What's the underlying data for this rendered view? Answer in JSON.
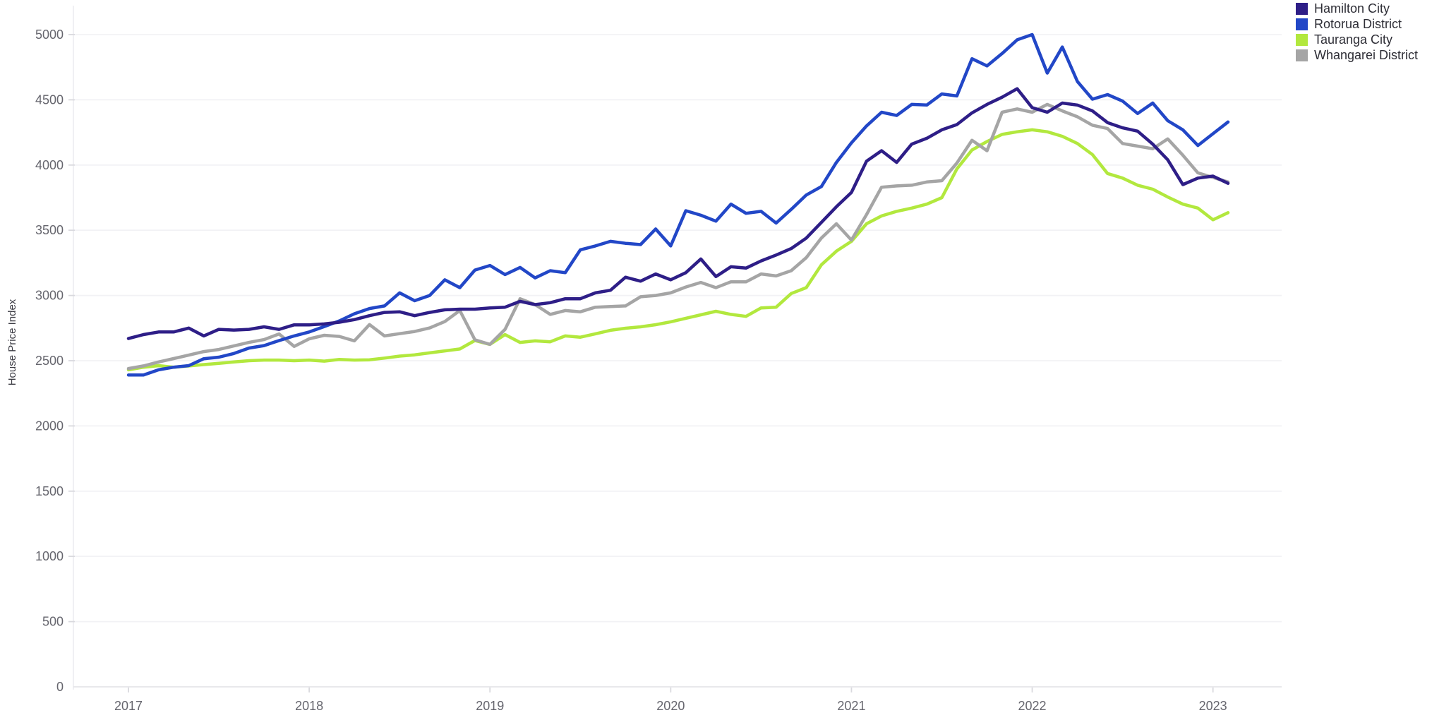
{
  "chart": {
    "ylabel": "House Price Index",
    "background_color": "#ffffff",
    "axis_line_color": "#e4e4e8",
    "grid_line_color": "#f2f2f5",
    "tick_mark_color": "#d9d9de",
    "tick_label_color": "#66666e",
    "legend_text_color": "#2e2e36"
  },
  "chart_data": {
    "type": "line",
    "title": "",
    "xlabel": "",
    "ylabel": "House Price Index",
    "grid": true,
    "legend_position": "top-right",
    "ylim": [
      0,
      5000
    ],
    "y_ticks": [
      0,
      500,
      1000,
      1500,
      2000,
      2500,
      3000,
      3500,
      4000,
      4500,
      5000
    ],
    "x_tick_labels": [
      "2017",
      "2018",
      "2019",
      "2020",
      "2021",
      "2022",
      "2023"
    ],
    "x": [
      "2017-01",
      "2017-02",
      "2017-03",
      "2017-04",
      "2017-05",
      "2017-06",
      "2017-07",
      "2017-08",
      "2017-09",
      "2017-10",
      "2017-11",
      "2017-12",
      "2018-01",
      "2018-02",
      "2018-03",
      "2018-04",
      "2018-05",
      "2018-06",
      "2018-07",
      "2018-08",
      "2018-09",
      "2018-10",
      "2018-11",
      "2018-12",
      "2019-01",
      "2019-02",
      "2019-03",
      "2019-04",
      "2019-05",
      "2019-06",
      "2019-07",
      "2019-08",
      "2019-09",
      "2019-10",
      "2019-11",
      "2019-12",
      "2020-01",
      "2020-02",
      "2020-03",
      "2020-04",
      "2020-05",
      "2020-06",
      "2020-07",
      "2020-08",
      "2020-09",
      "2020-10",
      "2020-11",
      "2020-12",
      "2021-01",
      "2021-02",
      "2021-03",
      "2021-04",
      "2021-05",
      "2021-06",
      "2021-07",
      "2021-08",
      "2021-09",
      "2021-10",
      "2021-11",
      "2021-12",
      "2022-01",
      "2022-02",
      "2022-03",
      "2022-04",
      "2022-05",
      "2022-06",
      "2022-07",
      "2022-08",
      "2022-09",
      "2022-10",
      "2022-11",
      "2022-12",
      "2023-01",
      "2023-02"
    ],
    "series": [
      {
        "name": "Hamilton City",
        "color": "#2e1e87",
        "values": [
          2670,
          2700,
          2720,
          2720,
          2750,
          2690,
          2740,
          2735,
          2740,
          2760,
          2740,
          2775,
          2775,
          2782,
          2795,
          2815,
          2845,
          2870,
          2875,
          2845,
          2870,
          2890,
          2895,
          2895,
          2905,
          2910,
          2955,
          2930,
          2945,
          2975,
          2975,
          3020,
          3040,
          3140,
          3110,
          3165,
          3120,
          3175,
          3280,
          3145,
          3220,
          3210,
          3265,
          3310,
          3360,
          3440,
          3560,
          3680,
          3790,
          4030,
          4110,
          4020,
          4160,
          4205,
          4270,
          4310,
          4400,
          4465,
          4520,
          4585,
          4440,
          4405,
          4475,
          4460,
          4415,
          4325,
          4285,
          4260,
          4160,
          4040,
          3850,
          3900,
          3915,
          3860
        ]
      },
      {
        "name": "Rotorua District",
        "color": "#2247c7",
        "values": [
          2390,
          2390,
          2430,
          2450,
          2462,
          2515,
          2527,
          2555,
          2597,
          2616,
          2654,
          2690,
          2720,
          2762,
          2805,
          2860,
          2900,
          2920,
          3020,
          2960,
          3000,
          3120,
          3060,
          3195,
          3230,
          3160,
          3215,
          3135,
          3190,
          3175,
          3350,
          3380,
          3415,
          3400,
          3390,
          3510,
          3380,
          3650,
          3615,
          3570,
          3700,
          3630,
          3645,
          3555,
          3660,
          3770,
          3835,
          4020,
          4170,
          4300,
          4405,
          4380,
          4465,
          4460,
          4545,
          4530,
          4815,
          4760,
          4855,
          4960,
          5000,
          4705,
          4905,
          4640,
          4505,
          4540,
          4490,
          4395,
          4475,
          4340,
          4270,
          4150,
          4240,
          4330
        ]
      },
      {
        "name": "Tauranga City",
        "color": "#b2e83e",
        "values": [
          2430,
          2450,
          2462,
          2450,
          2460,
          2470,
          2480,
          2490,
          2500,
          2505,
          2505,
          2500,
          2505,
          2497,
          2510,
          2505,
          2507,
          2520,
          2535,
          2545,
          2560,
          2575,
          2590,
          2655,
          2625,
          2700,
          2640,
          2652,
          2645,
          2690,
          2680,
          2706,
          2733,
          2749,
          2760,
          2776,
          2798,
          2825,
          2852,
          2879,
          2855,
          2840,
          2905,
          2910,
          3015,
          3060,
          3235,
          3340,
          3415,
          3550,
          3610,
          3645,
          3670,
          3700,
          3750,
          3970,
          4115,
          4180,
          4235,
          4255,
          4270,
          4255,
          4220,
          4165,
          4080,
          3935,
          3900,
          3845,
          3815,
          3755,
          3700,
          3670,
          3580,
          3635
        ]
      },
      {
        "name": "Whangarei District",
        "color": "#a5a5a5",
        "values": [
          2440,
          2460,
          2490,
          2516,
          2543,
          2570,
          2586,
          2613,
          2640,
          2662,
          2705,
          2610,
          2668,
          2695,
          2686,
          2652,
          2777,
          2690,
          2707,
          2724,
          2751,
          2800,
          2885,
          2660,
          2625,
          2740,
          2975,
          2930,
          2855,
          2885,
          2875,
          2910,
          2915,
          2920,
          2990,
          3000,
          3020,
          3065,
          3100,
          3060,
          3105,
          3105,
          3165,
          3150,
          3190,
          3290,
          3440,
          3550,
          3425,
          3620,
          3830,
          3840,
          3845,
          3870,
          3880,
          4015,
          4190,
          4110,
          4405,
          4430,
          4405,
          4465,
          4415,
          4370,
          4305,
          4280,
          4165,
          4145,
          4125,
          4200,
          4075,
          3940,
          3905,
          3870
        ]
      }
    ],
    "draw_order": [
      2,
      3,
      1,
      0
    ]
  }
}
